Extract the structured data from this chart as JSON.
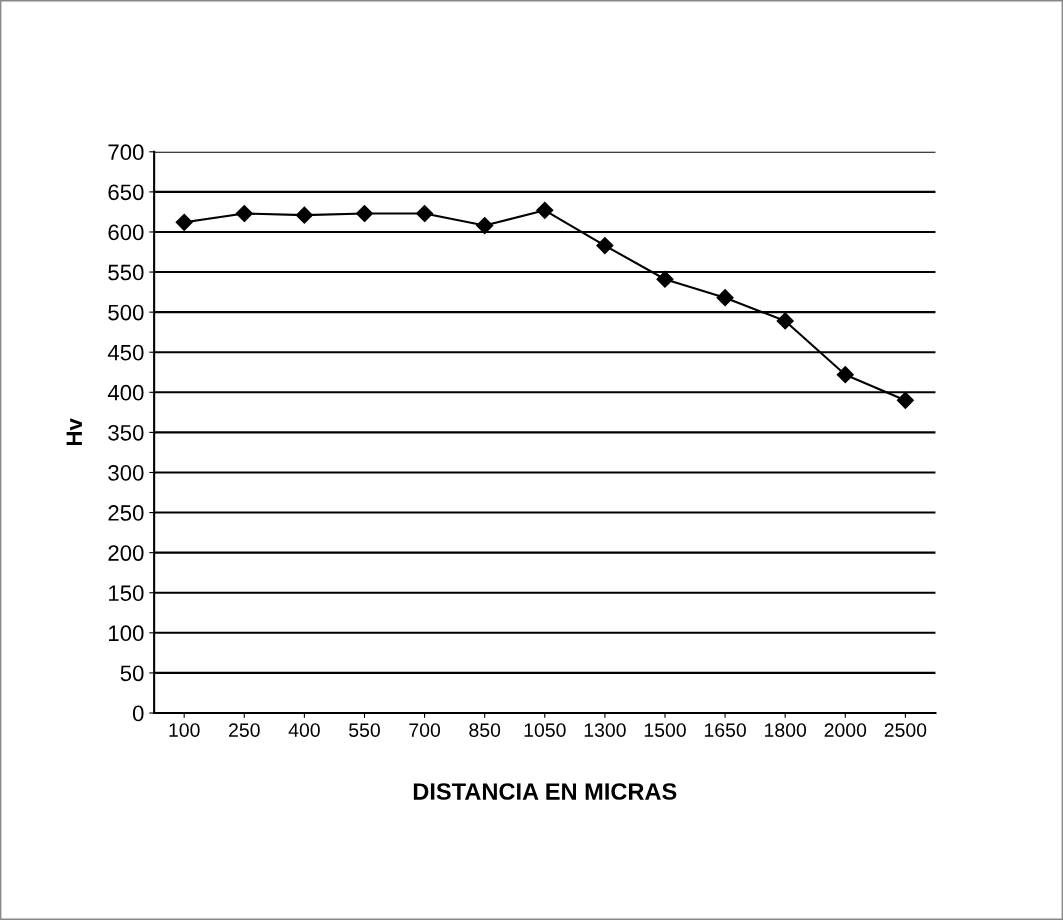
{
  "chart_data": {
    "type": "line",
    "categories": [
      "100",
      "250",
      "400",
      "550",
      "700",
      "850",
      "1050",
      "1300",
      "1500",
      "1650",
      "1800",
      "2000",
      "2500"
    ],
    "series": [
      {
        "color": "#000000",
        "values": [
          612,
          623,
          621,
          623,
          623,
          608,
          627,
          583,
          541,
          518,
          489,
          422,
          390
        ]
      }
    ],
    "xlabel": "DISTANCIA EN MICRAS",
    "ylabel": "Hv",
    "ylim": [
      0,
      700
    ],
    "yticks": [
      0,
      50,
      100,
      150,
      200,
      250,
      300,
      350,
      400,
      450,
      500,
      550,
      600,
      650,
      700
    ],
    "grid": "y",
    "marker": "diamond",
    "line_style": "solid"
  }
}
